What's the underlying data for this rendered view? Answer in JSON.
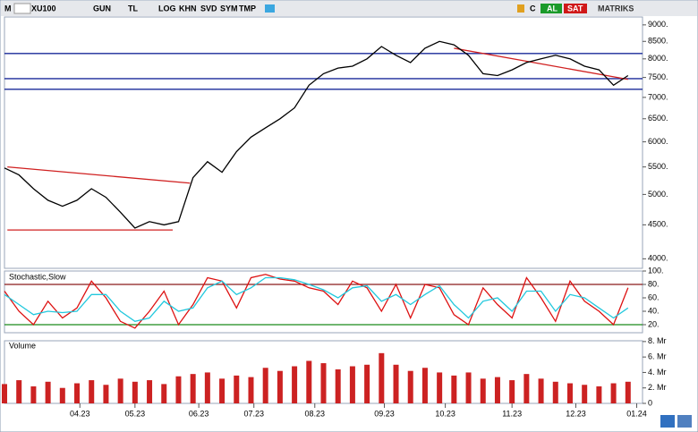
{
  "toolbar": {
    "left": [
      "M",
      "XU100",
      "GUN",
      "TL",
      "LOG",
      "KHN",
      "SVD",
      "SYM",
      "TMP"
    ],
    "right": [
      "C",
      "AL",
      "SAT",
      "MATRIKS"
    ]
  },
  "chart_data": [
    {
      "type": "line",
      "color": "#000000",
      "log_scale": true,
      "x": [
        0,
        5,
        10,
        15,
        20,
        25,
        30,
        35,
        40,
        45,
        50,
        55,
        60,
        65,
        70,
        75,
        80,
        85,
        90,
        95,
        100,
        105,
        110,
        115,
        120,
        125,
        130,
        135,
        140,
        145,
        150,
        155,
        160,
        165,
        170,
        175,
        180,
        185,
        190,
        195,
        200,
        205,
        210,
        215
      ],
      "values": [
        5480,
        5350,
        5100,
        4900,
        4800,
        4900,
        5100,
        4950,
        4700,
        4450,
        4550,
        4500,
        4550,
        5300,
        5600,
        5400,
        5800,
        6100,
        6300,
        6500,
        6750,
        7300,
        7600,
        7750,
        7800,
        8000,
        8350,
        8100,
        7900,
        8300,
        8500,
        8400,
        8100,
        7600,
        7550,
        7700,
        7900,
        8000,
        8100,
        8000,
        7800,
        7700,
        7300,
        7550
      ],
      "xlim": [
        0,
        220
      ],
      "xticks": [
        {
          "value": 26,
          "label": "04.23"
        },
        {
          "value": 45,
          "label": "05.23"
        },
        {
          "value": 67,
          "label": "06.23"
        },
        {
          "value": 86,
          "label": "07.23"
        },
        {
          "value": 107,
          "label": "08.23"
        },
        {
          "value": 131,
          "label": "09.23"
        },
        {
          "value": 152,
          "label": "10.23"
        },
        {
          "value": 175,
          "label": "11.23"
        },
        {
          "value": 197,
          "label": "12.23"
        },
        {
          "value": 218,
          "label": "01.24"
        }
      ],
      "ylim": [
        3870,
        9250
      ],
      "yticks": [
        {
          "value": 4000,
          "label": "4000."
        },
        {
          "value": 4500,
          "label": "4500."
        },
        {
          "value": 5000,
          "label": "5000."
        },
        {
          "value": 5500,
          "label": "5500."
        },
        {
          "value": 6000,
          "label": "6000."
        },
        {
          "value": 6500,
          "label": "6500."
        },
        {
          "value": 7000,
          "label": "7000."
        },
        {
          "value": 7500,
          "label": "7500."
        },
        {
          "value": 8000,
          "label": "8000."
        },
        {
          "value": 8500,
          "label": "8500."
        },
        {
          "value": 9000,
          "label": "9000."
        }
      ],
      "hlines": [
        {
          "value": 8150,
          "color": "#1a2a9a"
        },
        {
          "value": 7470,
          "color": "#1a2a9a"
        },
        {
          "value": 7200,
          "color": "#1a2a9a"
        }
      ],
      "lines": [
        {
          "color": "#d02020",
          "x": [
            1,
            64
          ],
          "y": [
            5500,
            5200
          ]
        },
        {
          "color": "#d02020",
          "x": [
            1,
            58
          ],
          "y": [
            4420,
            4420
          ]
        },
        {
          "color": "#d02020",
          "x": [
            155,
            215
          ],
          "y": [
            8300,
            7450
          ]
        }
      ]
    },
    {
      "type": "line",
      "title": "Stochastic,Slow",
      "series": [
        {
          "color": "#dd1111",
          "values": [
            70,
            40,
            20,
            55,
            30,
            45,
            85,
            60,
            25,
            15,
            40,
            70,
            20,
            50,
            90,
            85,
            45,
            90,
            95,
            88,
            85,
            75,
            70,
            50,
            85,
            75,
            40,
            80,
            30,
            80,
            75,
            35,
            20,
            75,
            50,
            30,
            90,
            60,
            25,
            85,
            55,
            40,
            20,
            75
          ]
        },
        {
          "color": "#22c8dd",
          "values": [
            65,
            50,
            35,
            40,
            38,
            40,
            65,
            65,
            40,
            25,
            30,
            55,
            40,
            45,
            75,
            85,
            65,
            75,
            90,
            90,
            87,
            80,
            72,
            60,
            75,
            78,
            55,
            65,
            50,
            65,
            78,
            50,
            30,
            55,
            60,
            40,
            70,
            70,
            40,
            65,
            60,
            45,
            30,
            45
          ]
        }
      ],
      "ylim": [
        8,
        100
      ],
      "yticks": [
        {
          "value": 20,
          "label": "20."
        },
        {
          "value": 40,
          "label": "40."
        },
        {
          "value": 60,
          "label": "60."
        },
        {
          "value": 80,
          "label": "80."
        },
        {
          "value": 100,
          "label": "100."
        }
      ],
      "hlines": [
        {
          "value": 80,
          "color": "#8b1a1a"
        },
        {
          "value": 20,
          "color": "#1a8a1a"
        }
      ]
    },
    {
      "type": "bar",
      "title": "Volume",
      "color": "#cc2222",
      "values": [
        2.5,
        3,
        2.2,
        2.8,
        2,
        2.6,
        3,
        2.4,
        3.2,
        2.8,
        3,
        2.5,
        3.5,
        3.8,
        4,
        3.2,
        3.6,
        3.4,
        4.6,
        4.2,
        4.8,
        5.5,
        5.2,
        4.4,
        4.8,
        5,
        6.5,
        5,
        4.2,
        4.6,
        4,
        3.6,
        4,
        3.2,
        3.4,
        3,
        3.8,
        3.2,
        2.8,
        2.6,
        2.4,
        2.2,
        2.6,
        2.8
      ],
      "ylim": [
        0,
        8.1
      ],
      "yticks": [
        0,
        {
          "value": 2,
          "label": "2. Mr"
        },
        {
          "value": 4,
          "label": "4. Mr"
        },
        {
          "value": 6,
          "label": "6. Mr"
        },
        {
          "value": 8,
          "label": "8. Mr"
        }
      ]
    }
  ]
}
